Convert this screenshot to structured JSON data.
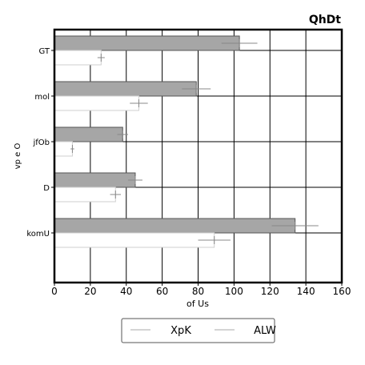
{
  "chart_data": {
    "type": "bar",
    "orientation": "horizontal",
    "title": "QhDt",
    "xlabel": "of Us",
    "ylabel": "vp e O",
    "xlim": [
      0,
      160
    ],
    "xticks": [
      0,
      20,
      40,
      60,
      80,
      100,
      120,
      140,
      160
    ],
    "categories": [
      "GT",
      "mol",
      "jfOb",
      "D",
      "komU"
    ],
    "series": [
      {
        "name": "XpK",
        "values": [
          103,
          79,
          38,
          45,
          134
        ],
        "errors": [
          10,
          8,
          3,
          4,
          13
        ],
        "color": "#a6a6a6"
      },
      {
        "name": "ALW",
        "values": [
          26,
          47,
          10,
          34,
          89
        ],
        "errors": [
          2,
          5,
          1,
          3,
          9
        ],
        "color": "#ffffff"
      }
    ],
    "grid": true,
    "legend": "bottom"
  }
}
